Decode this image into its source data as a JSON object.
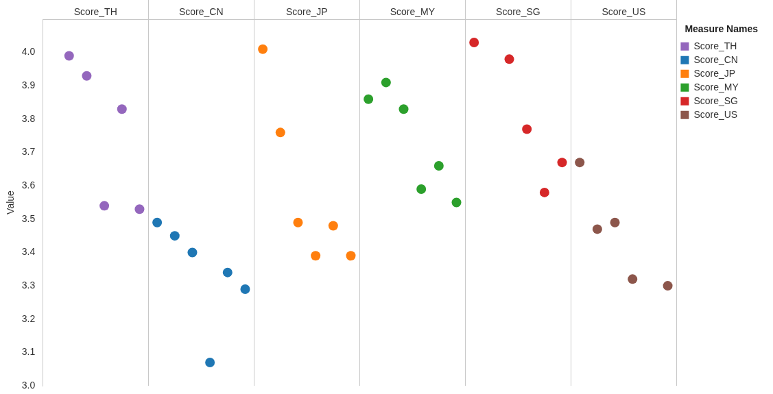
{
  "chart_data": {
    "type": "scatter",
    "ylabel": "Value",
    "legend": "right",
    "legend_title": "Measure Names",
    "marker": "circle",
    "tick_labels": "y",
    "annotations": [
      "Score_TH",
      "Score_CN",
      "Score_JP",
      "Score_MY",
      "Score_SG",
      "Score_US"
    ],
    "categories": [
      null,
      null,
      null,
      null,
      null,
      null,
      null,
      null,
      null,
      null,
      null,
      null,
      null,
      null,
      null,
      null,
      null,
      null,
      null,
      null,
      null,
      null,
      null,
      null,
      null,
      null,
      null,
      null,
      null,
      null,
      null,
      null,
      null,
      null,
      null,
      null
    ],
    "ylim": [
      3.0,
      4.1
    ],
    "yticks": [
      {
        "value": 3,
        "label": "3.0"
      },
      {
        "value": 3.1,
        "label": "3.1"
      },
      {
        "value": 3.2,
        "label": "3.2"
      },
      {
        "value": 3.3,
        "label": "3.3"
      },
      {
        "value": 3.4,
        "label": "3.4"
      },
      {
        "value": 3.5,
        "label": "3.5"
      },
      {
        "value": 3.6,
        "label": "3.6"
      },
      {
        "value": 3.7,
        "label": "3.7"
      },
      {
        "value": 3.8,
        "label": "3.8"
      },
      {
        "value": 3.9,
        "label": "3.9"
      },
      {
        "value": 4,
        "label": "4.0"
      }
    ],
    "series": [
      {
        "name": "Score_TH",
        "color": "#9467bd",
        "values": [
          null,
          3.99,
          3.93,
          3.54,
          3.83,
          3.53,
          null,
          null,
          null,
          null,
          null,
          null,
          null,
          null,
          null,
          null,
          null,
          null,
          null,
          null,
          null,
          null,
          null,
          null,
          null,
          null,
          null,
          null,
          null,
          null,
          null,
          null,
          null,
          null,
          null,
          null
        ]
      },
      {
        "name": "Score_CN",
        "color": "#1f77b4",
        "values": [
          null,
          null,
          null,
          null,
          null,
          null,
          3.49,
          3.45,
          3.4,
          3.07,
          3.34,
          3.29,
          null,
          null,
          null,
          null,
          null,
          null,
          null,
          null,
          null,
          null,
          null,
          null,
          null,
          null,
          null,
          null,
          null,
          null,
          null,
          null,
          null,
          null,
          null,
          null
        ]
      },
      {
        "name": "Score_JP",
        "color": "#ff7f0e",
        "values": [
          null,
          null,
          null,
          null,
          null,
          null,
          null,
          null,
          null,
          null,
          null,
          null,
          4.01,
          3.76,
          3.49,
          3.39,
          3.48,
          3.39,
          null,
          null,
          null,
          null,
          null,
          null,
          null,
          null,
          null,
          null,
          null,
          null,
          null,
          null,
          null,
          null,
          null,
          null
        ]
      },
      {
        "name": "Score_MY",
        "color": "#2ca02c",
        "values": [
          null,
          null,
          null,
          null,
          null,
          null,
          null,
          null,
          null,
          null,
          null,
          null,
          null,
          null,
          null,
          null,
          null,
          null,
          3.86,
          3.91,
          3.83,
          3.59,
          3.66,
          3.55,
          null,
          null,
          null,
          null,
          null,
          null,
          null,
          null,
          null,
          null,
          null,
          null
        ]
      },
      {
        "name": "Score_SG",
        "color": "#d62728",
        "values": [
          null,
          null,
          null,
          null,
          null,
          null,
          null,
          null,
          null,
          null,
          null,
          null,
          null,
          null,
          null,
          null,
          null,
          null,
          null,
          null,
          null,
          null,
          null,
          null,
          4.03,
          null,
          3.98,
          3.77,
          3.58,
          3.67,
          null,
          null,
          null,
          null,
          null,
          null
        ]
      },
      {
        "name": "Score_US",
        "color": "#8c564b",
        "values": [
          null,
          null,
          null,
          null,
          null,
          null,
          null,
          null,
          null,
          null,
          null,
          null,
          null,
          null,
          null,
          null,
          null,
          null,
          null,
          null,
          null,
          null,
          null,
          null,
          null,
          null,
          null,
          null,
          null,
          null,
          3.67,
          3.47,
          3.49,
          3.32,
          null,
          3.3
        ]
      }
    ]
  }
}
